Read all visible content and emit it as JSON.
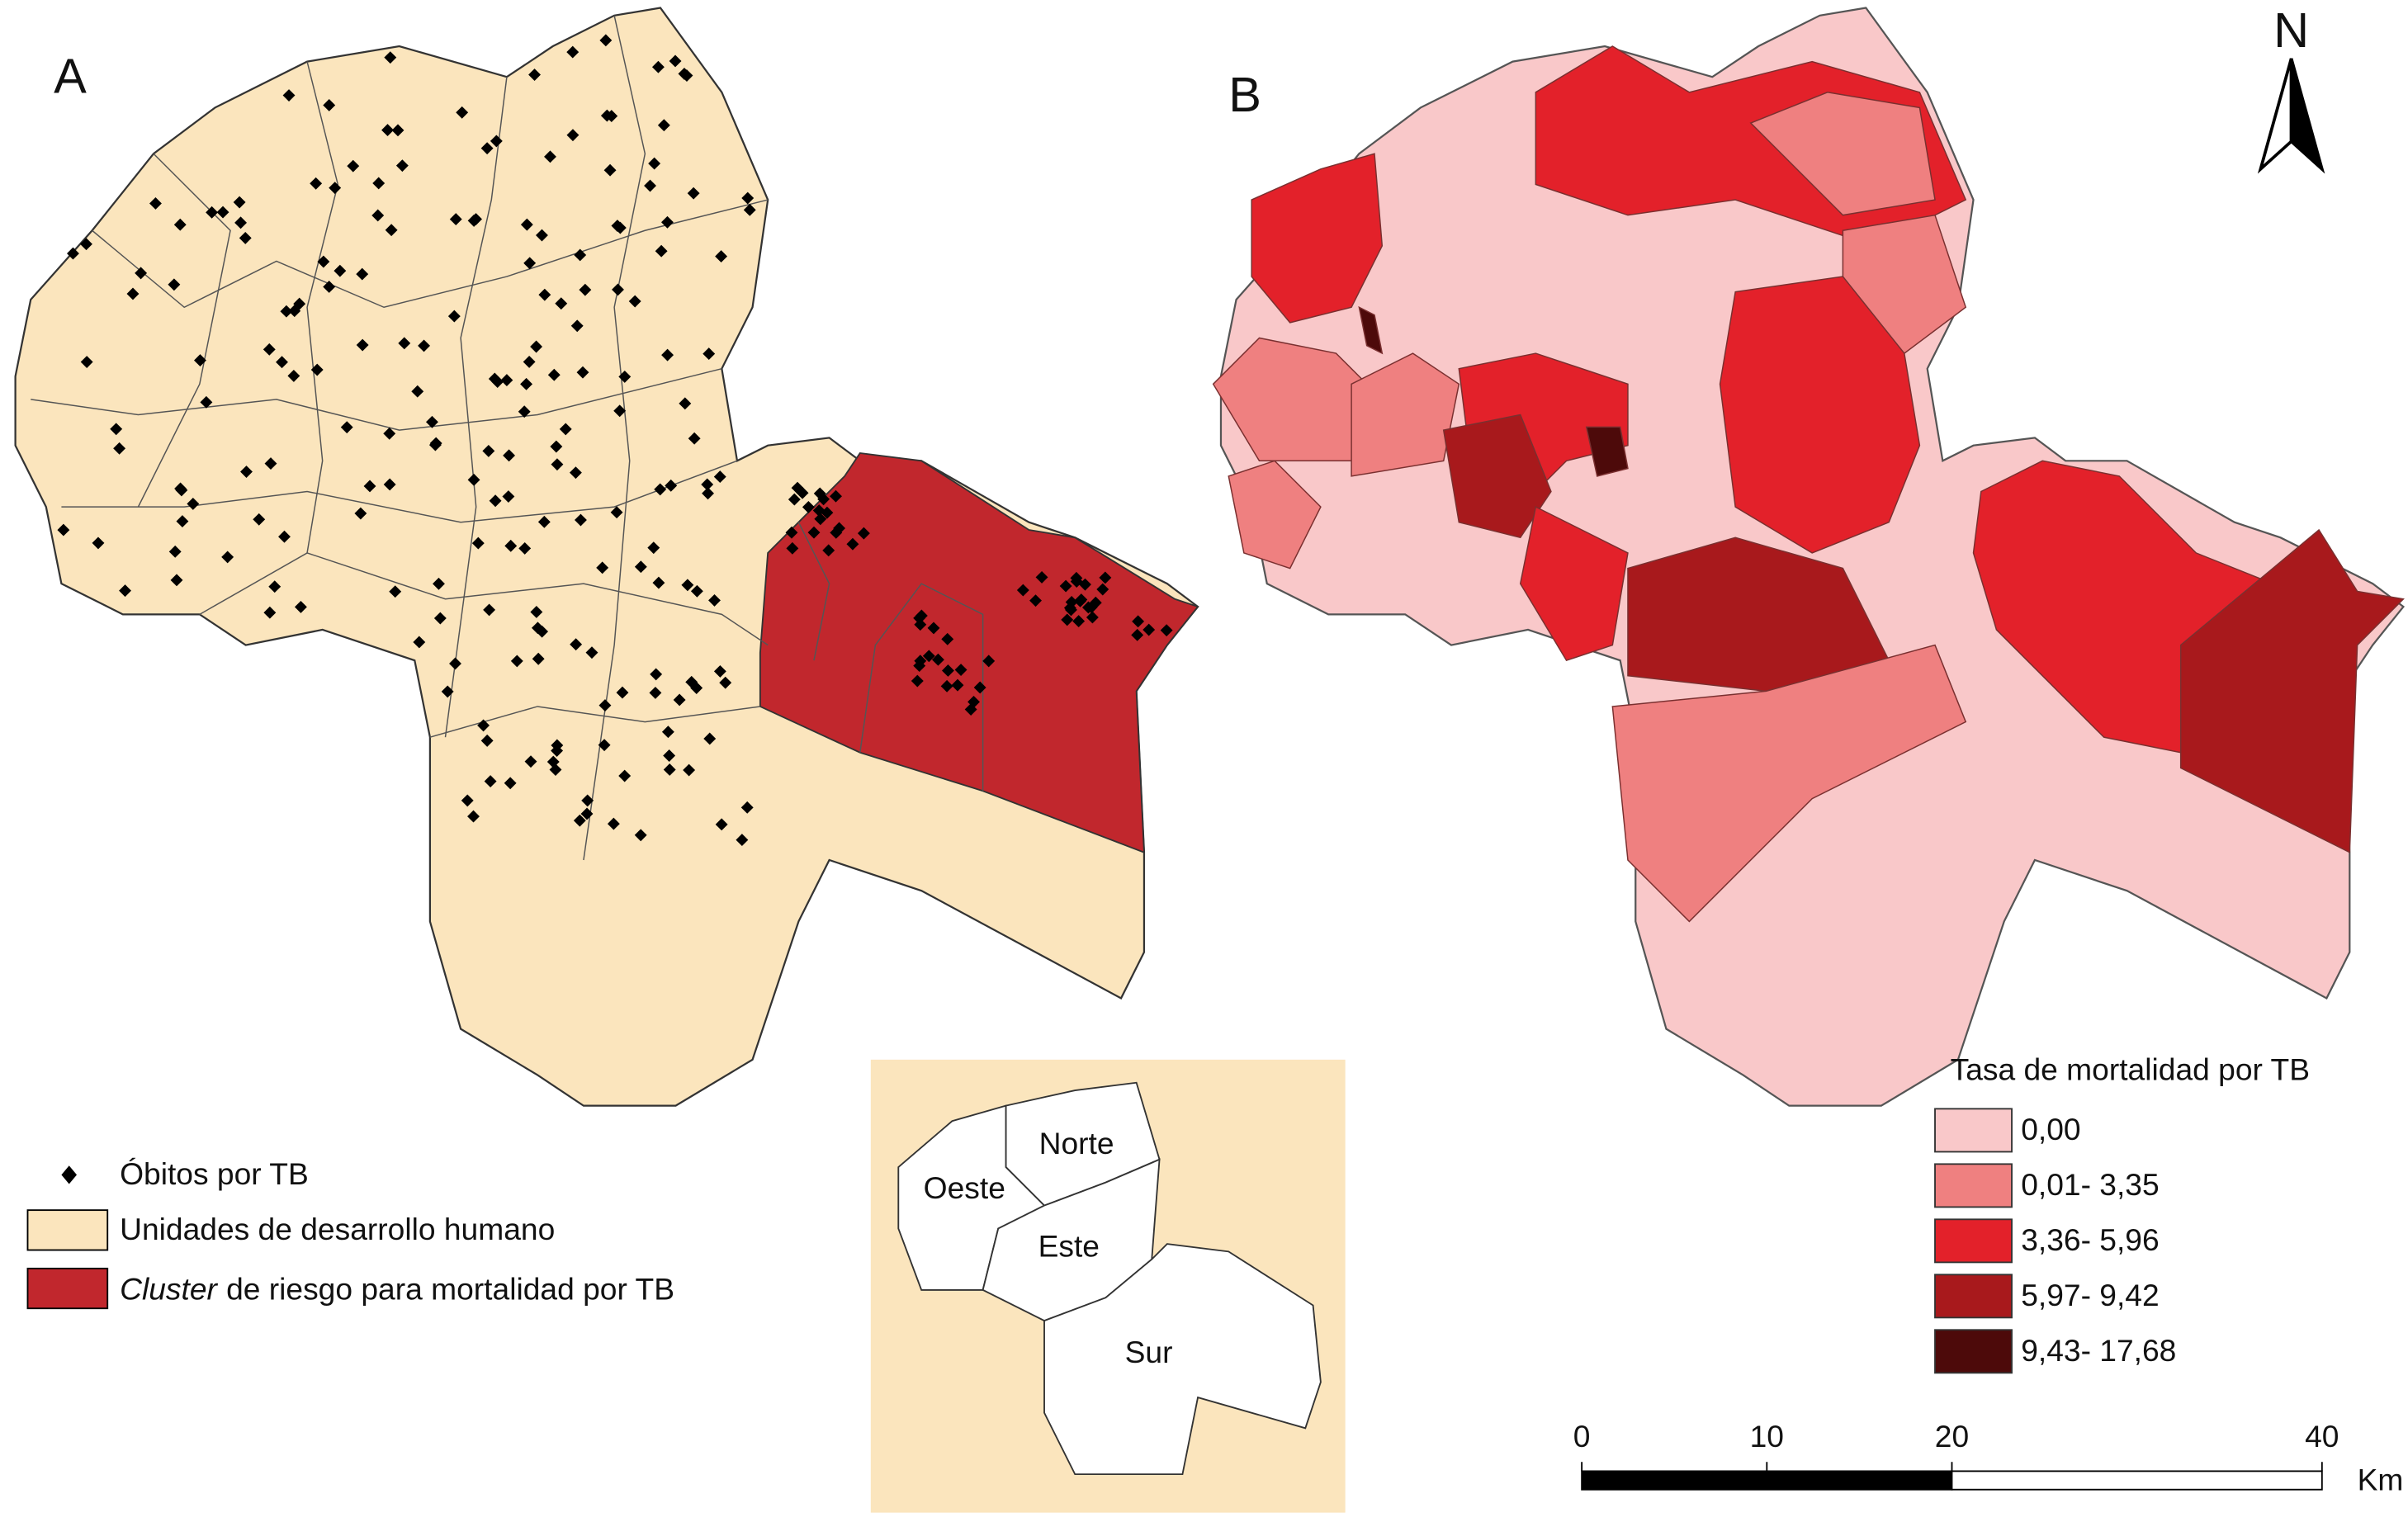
{
  "panels": {
    "a": "A",
    "b": "B"
  },
  "north": "N",
  "legend_a": {
    "deaths": "Óbitos por TB",
    "units": "Unidades de desarrollo humano",
    "cluster_italic": "Cluster",
    "cluster_rest": "de riesgo para mortalidad por TB"
  },
  "inset": {
    "regions": [
      "Norte",
      "Oeste",
      "Este",
      "Sur"
    ]
  },
  "legend_b": {
    "title": "Tasa de mortalidad por TB",
    "classes": [
      {
        "label": "0,00",
        "color": "#f9c8c9"
      },
      {
        "label": "0,01- 3,35",
        "color": "#ef8080"
      },
      {
        "label": "3,36- 5,96",
        "color": "#e3212a"
      },
      {
        "label": "5,97- 9,42",
        "color": "#a8191c"
      },
      {
        "label": "9,43- 17,68",
        "color": "#4d0a0a"
      }
    ]
  },
  "scale_bar": {
    "ticks": [
      0,
      10,
      20,
      40
    ],
    "unit": "Km"
  }
}
